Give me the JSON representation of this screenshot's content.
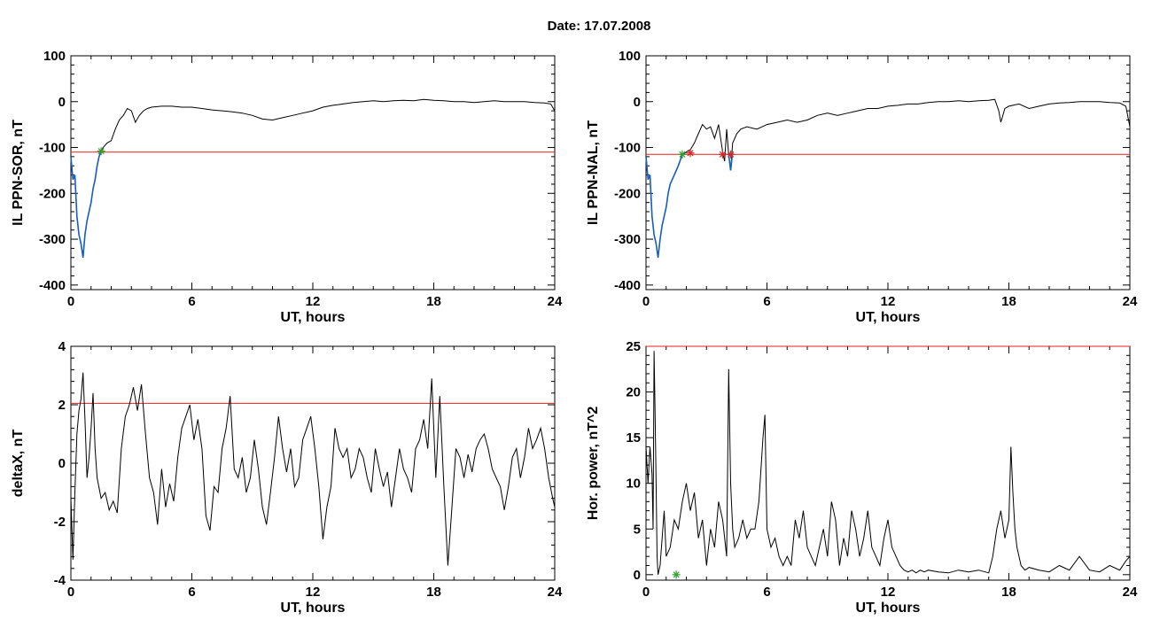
{
  "header": {
    "date_label": "Date:  17.07.2008"
  },
  "chart_data": [
    {
      "type": "line",
      "panel": "top-left",
      "xlabel": "UT, hours",
      "ylabel": "IL PPN-SOR, nT",
      "xlim": [
        0,
        24
      ],
      "ylim": [
        -410,
        100
      ],
      "xticks": [
        0,
        6,
        12,
        18,
        24
      ],
      "yticks": [
        100,
        0,
        -100,
        -200,
        -300,
        -400
      ],
      "xtick_labels": [
        "0",
        "6",
        "12",
        "18",
        "24"
      ],
      "ytick_labels": [
        "100",
        "0",
        "-100",
        "-200",
        "-300",
        "-400"
      ],
      "threshold": -110,
      "series": [
        {
          "color": "#000000",
          "x": [
            0,
            0.1,
            0.2,
            0.3,
            0.4,
            0.5,
            0.6,
            0.7,
            0.8,
            0.9,
            1.0,
            1.1,
            1.2,
            1.3,
            1.4,
            1.5,
            1.6,
            1.8,
            2.0,
            2.2,
            2.4,
            2.6,
            2.8,
            3.0,
            3.2,
            3.4,
            3.6,
            3.8,
            4.0,
            4.5,
            5,
            5.5,
            6,
            6.5,
            7,
            7.5,
            8,
            8.5,
            9,
            9.5,
            10,
            10.5,
            11,
            11.5,
            12,
            12.5,
            13,
            13.5,
            14,
            14.5,
            15,
            15.5,
            16,
            16.5,
            17,
            17.5,
            18,
            18.5,
            19,
            19.5,
            20,
            20.5,
            21,
            21.5,
            22,
            22.5,
            23,
            23.5,
            23.8,
            24
          ],
          "y": [
            -120,
            -170,
            -160,
            -250,
            -290,
            -310,
            -340,
            -290,
            -260,
            -240,
            -220,
            -190,
            -170,
            -140,
            -120,
            -108,
            -100,
            -90,
            -85,
            -60,
            -40,
            -30,
            -15,
            -20,
            -45,
            -30,
            -20,
            -15,
            -12,
            -10,
            -10,
            -12,
            -12,
            -15,
            -18,
            -20,
            -22,
            -25,
            -30,
            -38,
            -40,
            -35,
            -30,
            -25,
            -20,
            -12,
            -8,
            -5,
            -2,
            0,
            2,
            0,
            2,
            3,
            2,
            5,
            3,
            2,
            0,
            0,
            -2,
            0,
            2,
            0,
            0,
            0,
            -2,
            -3,
            -5,
            -20
          ]
        },
        {
          "color": "#1560bd",
          "x": [
            0,
            0.1,
            0.2,
            0.3,
            0.4,
            0.5,
            0.6,
            0.7,
            0.8,
            0.9,
            1.0,
            1.1,
            1.2,
            1.3,
            1.4,
            1.5
          ],
          "y": [
            -120,
            -170,
            -160,
            -250,
            -290,
            -310,
            -340,
            -290,
            -260,
            -240,
            -220,
            -190,
            -170,
            -140,
            -120,
            -108
          ]
        }
      ],
      "markers": [
        {
          "x": 1.5,
          "y": -108,
          "color": "#2ca02c"
        }
      ]
    },
    {
      "type": "line",
      "panel": "top-right",
      "xlabel": "UT, hours",
      "ylabel": "IL PPN-NAL, nT",
      "xlim": [
        0,
        24
      ],
      "ylim": [
        -410,
        100
      ],
      "xticks": [
        0,
        6,
        12,
        18,
        24
      ],
      "yticks": [
        100,
        0,
        -100,
        -200,
        -300,
        -400
      ],
      "xtick_labels": [
        "0",
        "6",
        "12",
        "18",
        "24"
      ],
      "ytick_labels": [
        "100",
        "0",
        "-100",
        "-200",
        "-300",
        "-400"
      ],
      "threshold": -115,
      "series": [
        {
          "color": "#000000",
          "x": [
            0,
            0.1,
            0.2,
            0.3,
            0.4,
            0.5,
            0.6,
            0.7,
            0.8,
            0.9,
            1.0,
            1.1,
            1.2,
            1.4,
            1.6,
            1.8,
            2.0,
            2.2,
            2.4,
            2.6,
            2.8,
            3.0,
            3.2,
            3.4,
            3.6,
            3.8,
            3.9,
            4.0,
            4.1,
            4.2,
            4.3,
            4.5,
            4.7,
            5,
            5.5,
            6,
            6.5,
            7,
            7.5,
            8,
            8.5,
            9,
            9.5,
            10,
            10.5,
            11,
            11.5,
            12,
            12.5,
            13,
            13.5,
            14,
            14.5,
            15,
            15.5,
            16,
            16.5,
            17,
            17.3,
            17.5,
            17.6,
            17.8,
            18,
            18.5,
            19,
            19.5,
            20,
            20.5,
            21,
            21.5,
            22,
            22.5,
            23,
            23.5,
            23.8,
            24
          ],
          "y": [
            -120,
            -170,
            -160,
            -250,
            -290,
            -310,
            -340,
            -300,
            -270,
            -250,
            -230,
            -200,
            -180,
            -160,
            -140,
            -115,
            -110,
            -105,
            -90,
            -70,
            -50,
            -60,
            -55,
            -80,
            -50,
            -110,
            -130,
            -60,
            -115,
            -150,
            -90,
            -70,
            -60,
            -55,
            -60,
            -50,
            -45,
            -40,
            -45,
            -40,
            -30,
            -25,
            -30,
            -25,
            -20,
            -15,
            -15,
            -10,
            -8,
            -5,
            -5,
            -2,
            0,
            0,
            2,
            0,
            2,
            3,
            5,
            -20,
            -45,
            -15,
            -10,
            -5,
            -15,
            -10,
            -5,
            -3,
            -2,
            0,
            0,
            0,
            -2,
            -3,
            -10,
            -55
          ]
        },
        {
          "color": "#1560bd",
          "x": [
            0,
            0.1,
            0.2,
            0.3,
            0.4,
            0.5,
            0.6,
            0.7,
            0.8,
            0.9,
            1.0,
            1.1,
            1.2,
            1.4,
            1.6,
            1.8
          ],
          "y": [
            -120,
            -170,
            -160,
            -250,
            -290,
            -310,
            -340,
            -300,
            -270,
            -250,
            -230,
            -200,
            -180,
            -160,
            -140,
            -115
          ]
        },
        {
          "color": "#1560bd",
          "x": [
            4.1,
            4.2,
            4.3
          ],
          "y": [
            -115,
            -150,
            -110
          ]
        }
      ],
      "markers": [
        {
          "x": 1.8,
          "y": -115,
          "color": "#2ca02c"
        },
        {
          "x": 2.2,
          "y": -112,
          "color": "#d62728"
        },
        {
          "x": 3.8,
          "y": -115,
          "color": "#d62728"
        },
        {
          "x": 4.2,
          "y": -115,
          "color": "#d62728"
        }
      ]
    },
    {
      "type": "line",
      "panel": "bottom-left",
      "xlabel": "UT, hours",
      "ylabel": "deltaX, nT",
      "xlim": [
        0,
        24
      ],
      "ylim": [
        -4,
        4
      ],
      "xticks": [
        0,
        6,
        12,
        18,
        24
      ],
      "yticks": [
        4,
        2,
        0,
        -2,
        -4
      ],
      "xtick_labels": [
        "0",
        "6",
        "12",
        "18",
        "24"
      ],
      "ytick_labels": [
        "4",
        "2",
        "0",
        "-2",
        "-4"
      ],
      "threshold": 2.05,
      "series": [
        {
          "color": "#000000",
          "x": [
            0,
            0.1,
            0.2,
            0.3,
            0.4,
            0.5,
            0.6,
            0.7,
            0.8,
            0.9,
            1.0,
            1.1,
            1.2,
            1.3,
            1.5,
            1.7,
            1.9,
            2.1,
            2.3,
            2.5,
            2.7,
            2.9,
            3.1,
            3.3,
            3.5,
            3.7,
            3.9,
            4.1,
            4.3,
            4.5,
            4.7,
            4.9,
            5.1,
            5.3,
            5.5,
            5.7,
            5.9,
            6.1,
            6.3,
            6.5,
            6.7,
            6.9,
            7.1,
            7.3,
            7.5,
            7.7,
            7.9,
            8.1,
            8.3,
            8.5,
            8.7,
            8.9,
            9.1,
            9.3,
            9.5,
            9.7,
            9.9,
            10.1,
            10.3,
            10.5,
            10.7,
            10.9,
            11.1,
            11.3,
            11.5,
            11.7,
            11.9,
            12.1,
            12.3,
            12.5,
            12.7,
            12.9,
            13.1,
            13.3,
            13.5,
            13.7,
            13.9,
            14.1,
            14.3,
            14.5,
            14.7,
            14.9,
            15.1,
            15.3,
            15.5,
            15.7,
            15.9,
            16.1,
            16.3,
            16.5,
            16.7,
            16.9,
            17.1,
            17.3,
            17.5,
            17.7,
            17.9,
            18.1,
            18.3,
            18.5,
            18.7,
            18.9,
            19.1,
            19.3,
            19.5,
            19.7,
            19.9,
            20.1,
            20.3,
            20.5,
            20.7,
            20.9,
            21.1,
            21.3,
            21.5,
            21.7,
            21.9,
            22.1,
            22.3,
            22.5,
            22.7,
            22.9,
            23.1,
            23.3,
            23.5,
            23.7,
            23.9,
            24
          ],
          "y": [
            -1.2,
            -3.3,
            -1,
            1,
            1.8,
            2.2,
            3.1,
            1.5,
            -0.5,
            0.2,
            1.2,
            2.4,
            0.5,
            -0.5,
            -1.2,
            -1.0,
            -1.6,
            -1.3,
            -1.7,
            0.5,
            1.6,
            2.0,
            2.6,
            1.8,
            2.7,
            1.0,
            -0.5,
            -1.0,
            -2.1,
            -0.2,
            -1.5,
            -0.7,
            -1.3,
            0.2,
            1.2,
            1.6,
            2.0,
            0.8,
            1.5,
            0.5,
            -1.8,
            -2.3,
            -0.8,
            -1.0,
            0.5,
            1.2,
            2.3,
            -0.2,
            -0.5,
            0.2,
            -1.0,
            -0.5,
            0.8,
            -0.2,
            -1.5,
            -2.1,
            -1.0,
            0.2,
            1.6,
            0.5,
            -0.3,
            0.5,
            -0.8,
            -0.5,
            0.8,
            1.2,
            1.6,
            0.5,
            -0.8,
            -2.6,
            -1.5,
            -0.8,
            1.2,
            0.5,
            0.2,
            0.5,
            -0.5,
            -0.2,
            0.5,
            0.2,
            -0.5,
            -1.0,
            0.5,
            -0.2,
            -0.8,
            -0.3,
            -1.5,
            -0.5,
            0.5,
            -0.2,
            -0.5,
            -1.0,
            0.5,
            0.8,
            1.5,
            0.5,
            2.9,
            -0.5,
            2.3,
            -0.8,
            -3.5,
            -1.5,
            0.5,
            0.2,
            -0.5,
            0.3,
            -0.3,
            0.5,
            0.8,
            1.0,
            0.5,
            -0.2,
            -0.5,
            -0.8,
            -1.6,
            -0.8,
            0.2,
            0.5,
            -0.5,
            0.2,
            1.2,
            0.5,
            0.8,
            1.2,
            0.5,
            -0.5,
            -1.2,
            -1.5
          ]
        }
      ],
      "markers": []
    },
    {
      "type": "line",
      "panel": "bottom-right",
      "xlabel": "UT, hours",
      "ylabel": "Hor. power, nT^2",
      "xlim": [
        0,
        24
      ],
      "ylim": [
        -0.6,
        25
      ],
      "xticks": [
        0,
        6,
        12,
        18,
        24
      ],
      "yticks": [
        25,
        20,
        15,
        10,
        5,
        0
      ],
      "xtick_labels": [
        "0",
        "6",
        "12",
        "18",
        "24"
      ],
      "ytick_labels": [
        "25",
        "20",
        "15",
        "10",
        "5",
        "0"
      ],
      "threshold": 25,
      "series": [
        {
          "color": "#000000",
          "x": [
            0,
            0.1,
            0.2,
            0.3,
            0.35,
            0.4,
            0.45,
            0.5,
            0.55,
            0.6,
            0.7,
            0.8,
            0.9,
            1.0,
            1.2,
            1.4,
            1.6,
            1.8,
            2.0,
            2.2,
            2.4,
            2.6,
            2.8,
            3.0,
            3.2,
            3.4,
            3.6,
            3.8,
            4.0,
            4.1,
            4.2,
            4.3,
            4.4,
            4.6,
            4.8,
            5.0,
            5.2,
            5.4,
            5.6,
            5.8,
            5.9,
            6.0,
            6.2,
            6.4,
            6.6,
            6.8,
            7.0,
            7.2,
            7.4,
            7.6,
            7.8,
            8.0,
            8.2,
            8.4,
            8.6,
            8.8,
            9.0,
            9.2,
            9.4,
            9.6,
            9.8,
            10.0,
            10.2,
            10.4,
            10.6,
            10.8,
            11.0,
            11.2,
            11.4,
            11.6,
            11.8,
            12.0,
            12.2,
            12.4,
            12.6,
            12.8,
            13.0,
            13.2,
            13.4,
            13.6,
            13.8,
            14.0,
            14.5,
            15,
            15.5,
            16,
            16.5,
            17,
            17.2,
            17.4,
            17.6,
            17.8,
            18.0,
            18.1,
            18.2,
            18.3,
            18.4,
            18.6,
            18.8,
            19,
            19.5,
            20,
            20.5,
            21,
            21.5,
            22,
            22.5,
            23,
            23.5,
            23.8,
            24
          ],
          "y": [
            14,
            10,
            14,
            11,
            5,
            24.5,
            18,
            10,
            2,
            0,
            1,
            4,
            7,
            2,
            3,
            6,
            5,
            8,
            10,
            7,
            9,
            4,
            6,
            1,
            5,
            3,
            8,
            6,
            2,
            22.5,
            10,
            5,
            3,
            4,
            6,
            4,
            5,
            5,
            8,
            15,
            17.5,
            5,
            3,
            4,
            2,
            1,
            2,
            1,
            6,
            4,
            7,
            3,
            2,
            1,
            3,
            5,
            2,
            8,
            6,
            1,
            4,
            2,
            7,
            5,
            2,
            4,
            7,
            3,
            2,
            1,
            4,
            6,
            3,
            2,
            1,
            0.5,
            0.3,
            0.5,
            0.2,
            0.5,
            0.3,
            0.5,
            0.3,
            0.2,
            0.5,
            0.3,
            0.5,
            0.2,
            2,
            5,
            7,
            4,
            6,
            14,
            9,
            5,
            3,
            1,
            0.5,
            0.8,
            0.5,
            0.3,
            1,
            0.5,
            2,
            0.5,
            0.3,
            1,
            0.5,
            1.5,
            2
          ]
        }
      ],
      "markers": [
        {
          "x": 1.5,
          "y": 0,
          "color": "#2ca02c"
        }
      ]
    }
  ]
}
